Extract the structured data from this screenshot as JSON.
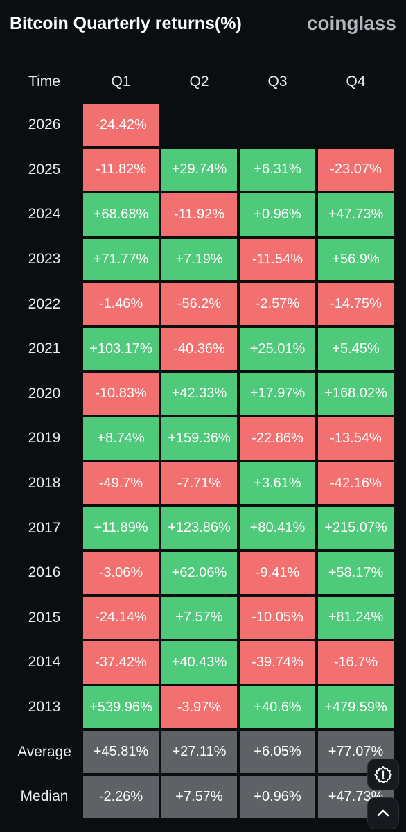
{
  "header": {
    "title": "Bitcoin Quarterly returns(%)",
    "brand": "coinglass"
  },
  "table": {
    "columns": [
      "Time",
      "Q1",
      "Q2",
      "Q3",
      "Q4"
    ],
    "rows": [
      {
        "year": "2026",
        "q": [
          "-24.42%",
          "",
          "",
          ""
        ]
      },
      {
        "year": "2025",
        "q": [
          "-11.82%",
          "+29.74%",
          "+6.31%",
          "-23.07%"
        ]
      },
      {
        "year": "2024",
        "q": [
          "+68.68%",
          "-11.92%",
          "+0.96%",
          "+47.73%"
        ]
      },
      {
        "year": "2023",
        "q": [
          "+71.77%",
          "+7.19%",
          "-11.54%",
          "+56.9%"
        ]
      },
      {
        "year": "2022",
        "q": [
          "-1.46%",
          "-56.2%",
          "-2.57%",
          "-14.75%"
        ]
      },
      {
        "year": "2021",
        "q": [
          "+103.17%",
          "-40.36%",
          "+25.01%",
          "+5.45%"
        ]
      },
      {
        "year": "2020",
        "q": [
          "-10.83%",
          "+42.33%",
          "+17.97%",
          "+168.02%"
        ]
      },
      {
        "year": "2019",
        "q": [
          "+8.74%",
          "+159.36%",
          "-22.86%",
          "-13.54%"
        ]
      },
      {
        "year": "2018",
        "q": [
          "-49.7%",
          "-7.71%",
          "+3.61%",
          "-42.16%"
        ]
      },
      {
        "year": "2017",
        "q": [
          "+11.89%",
          "+123.86%",
          "+80.41%",
          "+215.07%"
        ]
      },
      {
        "year": "2016",
        "q": [
          "-3.06%",
          "+62.06%",
          "-9.41%",
          "+58.17%"
        ]
      },
      {
        "year": "2015",
        "q": [
          "-24.14%",
          "+7.57%",
          "-10.05%",
          "+81.24%"
        ]
      },
      {
        "year": "2014",
        "q": [
          "-37.42%",
          "+40.43%",
          "-39.74%",
          "-16.7%"
        ]
      },
      {
        "year": "2013",
        "q": [
          "+539.96%",
          "-3.97%",
          "+40.6%",
          "+479.59%"
        ]
      }
    ],
    "summary": [
      {
        "label": "Average",
        "q": [
          "+45.81%",
          "+27.11%",
          "+6.05%",
          "+77.07%"
        ]
      },
      {
        "label": "Median",
        "q": [
          "-2.26%",
          "+7.57%",
          "+0.96%",
          "+47.73%"
        ]
      }
    ]
  },
  "colors": {
    "positive": "#4fc97a",
    "negative": "#f2706f",
    "summary": "#5e6166",
    "background": "#0b0e11"
  },
  "floating_buttons": [
    {
      "name": "settings-gear-icon"
    },
    {
      "name": "scroll-up-chevron-icon"
    }
  ]
}
